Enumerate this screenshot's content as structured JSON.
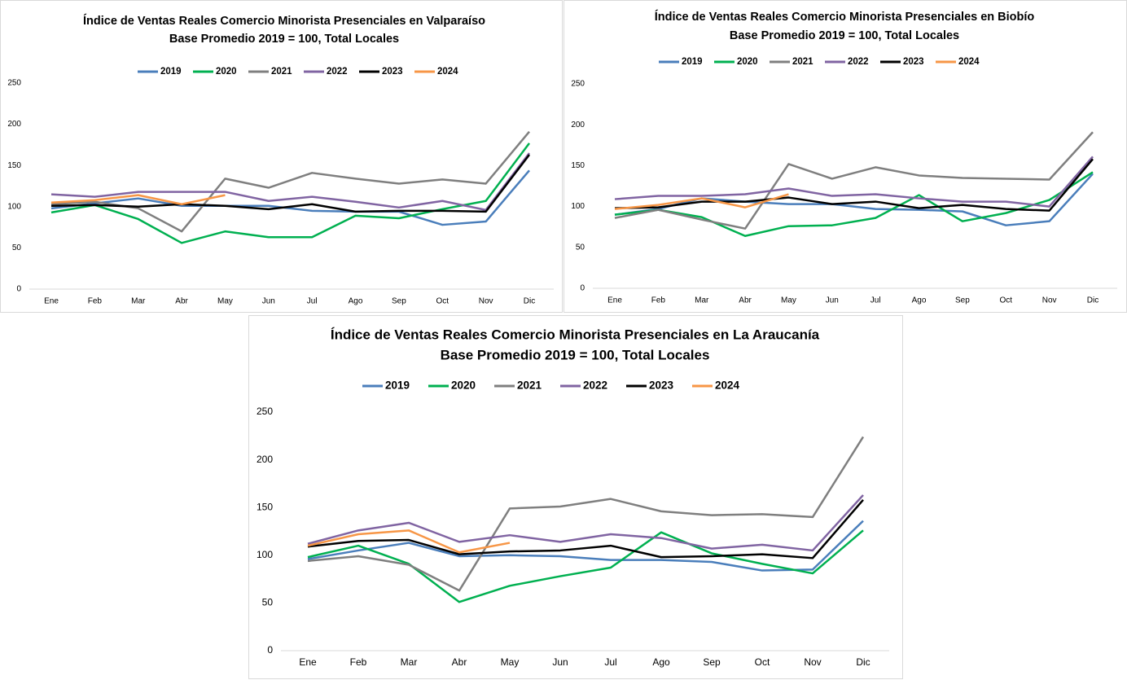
{
  "chart_data": [
    {
      "type": "line",
      "title": "Índice de Ventas Reales Comercio Minorista Presenciales en Valparaíso",
      "subtitle": "Base Promedio 2019 = 100, Total Locales",
      "categories": [
        "Ene",
        "Feb",
        "Mar",
        "Abr",
        "May",
        "Jun",
        "Jul",
        "Ago",
        "Sep",
        "Oct",
        "Nov",
        "Dic"
      ],
      "ylim": [
        0,
        250
      ],
      "yticks": [
        0,
        50,
        100,
        150,
        200,
        250
      ],
      "grid": false,
      "legend": "top",
      "series": [
        {
          "name": "2019",
          "color": "#4a7ebb",
          "values": [
            98,
            104,
            110,
            101,
            101,
            101,
            95,
            94,
            94,
            78,
            82,
            144
          ]
        },
        {
          "name": "2020",
          "color": "#00b050",
          "values": [
            93,
            102,
            85,
            56,
            70,
            63,
            63,
            89,
            86,
            97,
            107,
            177
          ]
        },
        {
          "name": "2021",
          "color": "#7f7f7f",
          "values": [
            103,
            106,
            98,
            70,
            134,
            123,
            141,
            134,
            128,
            133,
            128,
            191
          ]
        },
        {
          "name": "2022",
          "color": "#8064a2",
          "values": [
            115,
            112,
            118,
            118,
            118,
            107,
            112,
            106,
            99,
            107,
            96,
            165
          ]
        },
        {
          "name": "2023",
          "color": "#000000",
          "values": [
            101,
            102,
            100,
            103,
            101,
            97,
            103,
            94,
            95,
            95,
            94,
            163
          ]
        },
        {
          "name": "2024",
          "color": "#f79646",
          "values": [
            105,
            108,
            114,
            103,
            114,
            null,
            null,
            null,
            null,
            null,
            null,
            null
          ]
        }
      ]
    },
    {
      "type": "line",
      "title": "Índice de Ventas Reales Comercio Minorista Presenciales en Biobío",
      "subtitle": "Base Promedio 2019 = 100, Total Locales",
      "categories": [
        "Ene",
        "Feb",
        "Mar",
        "Abr",
        "May",
        "Jun",
        "Jul",
        "Ago",
        "Sep",
        "Oct",
        "Nov",
        "Dic"
      ],
      "ylim": [
        0,
        250
      ],
      "yticks": [
        0,
        50,
        100,
        150,
        200,
        250
      ],
      "grid": false,
      "legend": "top",
      "series": [
        {
          "name": "2019",
          "color": "#4a7ebb",
          "values": [
            90,
            97,
            110,
            106,
            103,
            103,
            97,
            96,
            94,
            77,
            82,
            140
          ]
        },
        {
          "name": "2020",
          "color": "#00b050",
          "values": [
            90,
            96,
            87,
            64,
            76,
            77,
            86,
            114,
            82,
            92,
            108,
            142
          ]
        },
        {
          "name": "2021",
          "color": "#7f7f7f",
          "values": [
            86,
            96,
            84,
            73,
            152,
            134,
            148,
            138,
            135,
            134,
            133,
            191
          ]
        },
        {
          "name": "2022",
          "color": "#8064a2",
          "values": [
            109,
            113,
            113,
            115,
            122,
            113,
            115,
            110,
            106,
            106,
            100,
            161
          ]
        },
        {
          "name": "2023",
          "color": "#000000",
          "values": [
            98,
            99,
            106,
            106,
            111,
            103,
            106,
            98,
            102,
            97,
            95,
            158
          ]
        },
        {
          "name": "2024",
          "color": "#f79646",
          "values": [
            97,
            102,
            110,
            99,
            115,
            null,
            null,
            null,
            null,
            null,
            null,
            null
          ]
        }
      ]
    },
    {
      "type": "line",
      "title": "Índice de Ventas Reales Comercio Minorista Presenciales en La Araucanía",
      "subtitle": "Base Promedio 2019 = 100, Total Locales",
      "categories": [
        "Ene",
        "Feb",
        "Mar",
        "Abr",
        "May",
        "Jun",
        "Jul",
        "Ago",
        "Sep",
        "Oct",
        "Nov",
        "Dic"
      ],
      "ylim": [
        0,
        250
      ],
      "yticks": [
        0,
        50,
        100,
        150,
        200,
        250
      ],
      "grid": false,
      "legend": "top",
      "series": [
        {
          "name": "2019",
          "color": "#4a7ebb",
          "values": [
            96,
            105,
            113,
            99,
            100,
            99,
            95,
            95,
            93,
            84,
            85,
            136
          ]
        },
        {
          "name": "2020",
          "color": "#00b050",
          "values": [
            98,
            110,
            91,
            51,
            68,
            78,
            87,
            124,
            102,
            91,
            81,
            126
          ]
        },
        {
          "name": "2021",
          "color": "#7f7f7f",
          "values": [
            94,
            99,
            90,
            63,
            149,
            151,
            159,
            146,
            142,
            143,
            140,
            224
          ]
        },
        {
          "name": "2022",
          "color": "#8064a2",
          "values": [
            112,
            126,
            134,
            114,
            121,
            114,
            122,
            118,
            107,
            111,
            105,
            163
          ]
        },
        {
          "name": "2023",
          "color": "#000000",
          "values": [
            109,
            115,
            116,
            101,
            104,
            105,
            110,
            98,
            99,
            101,
            97,
            158
          ]
        },
        {
          "name": "2024",
          "color": "#f79646",
          "values": [
            110,
            122,
            126,
            103,
            113,
            null,
            null,
            null,
            null,
            null,
            null,
            null
          ]
        }
      ]
    }
  ]
}
